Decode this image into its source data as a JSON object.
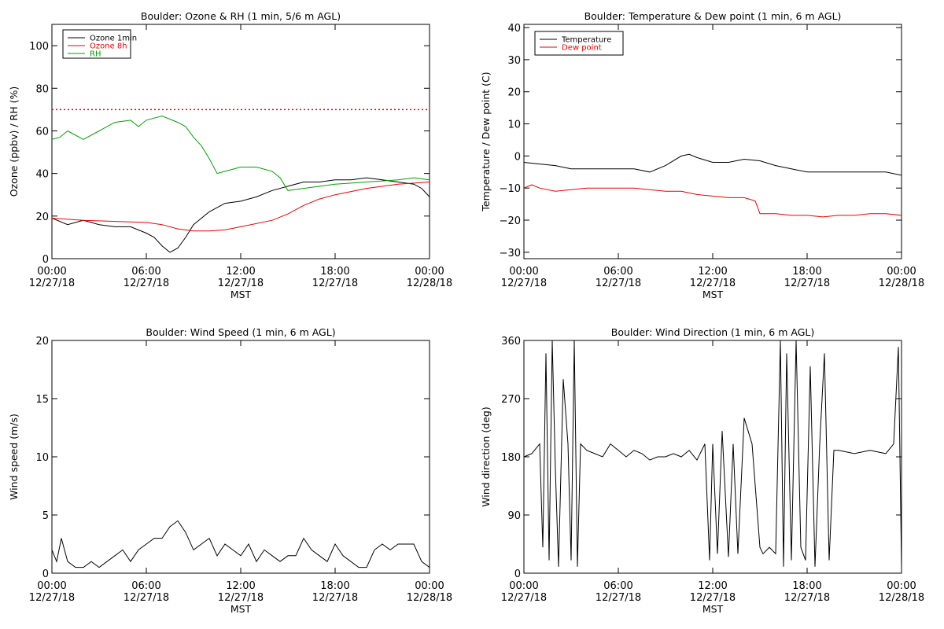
{
  "colors": {
    "black": "#000000",
    "red": "#ee0000",
    "green": "#00a000"
  },
  "chart_data": [
    {
      "type": "line",
      "title": "Boulder: Ozone & RH (1 min, 5/6 m AGL)",
      "xlabel": "MST",
      "ylabel": "Ozone (ppbv) / RH (%)",
      "xlim": [
        0,
        24
      ],
      "ylim": [
        0,
        110
      ],
      "xticks": [
        {
          "top": "00:00",
          "bottom": "12/27/18"
        },
        {
          "top": "06:00",
          "bottom": "12/27/18"
        },
        {
          "top": "12:00",
          "bottom": "12/27/18"
        },
        {
          "top": "18:00",
          "bottom": "12/27/18"
        },
        {
          "top": "00:00",
          "bottom": "12/28/18"
        }
      ],
      "yticks": [
        "0",
        "20",
        "40",
        "60",
        "80",
        "100"
      ],
      "legend_position": "top-left",
      "reference_line": {
        "y": 70,
        "color": "#ee0000",
        "style": "dotted"
      },
      "series": [
        {
          "name": "Ozone 1min",
          "color": "#000000",
          "x": [
            0,
            1,
            2,
            3,
            4,
            5,
            6,
            6.5,
            7,
            7.5,
            8,
            8.5,
            9,
            10,
            11,
            12,
            13,
            14,
            15,
            16,
            17,
            18,
            19,
            20,
            21,
            22,
            23,
            23.5,
            24
          ],
          "y": [
            19,
            16,
            18,
            16,
            15,
            15,
            12,
            10,
            6,
            3,
            5,
            10,
            16,
            22,
            26,
            27,
            29,
            32,
            34,
            36,
            36,
            37,
            37,
            38,
            37,
            36,
            35,
            33,
            29
          ]
        },
        {
          "name": "Ozone 8h",
          "color": "#ee0000",
          "x": [
            0,
            2,
            4,
            6,
            7,
            8,
            9,
            10,
            11,
            12,
            14,
            15,
            16,
            17,
            18,
            20,
            22,
            24
          ],
          "y": [
            19,
            18,
            17.5,
            17,
            16,
            14,
            13,
            13,
            13.5,
            15,
            18,
            21,
            25,
            28,
            30,
            33,
            35,
            36
          ]
        },
        {
          "name": "RH",
          "color": "#00a000",
          "x": [
            0,
            0.5,
            1,
            2,
            3,
            4,
            5,
            5.5,
            6,
            6.5,
            7,
            8,
            8.5,
            9,
            9.5,
            10,
            10.5,
            11,
            12,
            13,
            14,
            14.5,
            15,
            16,
            18,
            20,
            22,
            23,
            24
          ],
          "y": [
            56,
            57,
            60,
            56,
            60,
            64,
            65,
            62,
            65,
            66,
            67,
            64,
            62,
            57,
            53,
            47,
            40,
            41,
            43,
            43,
            41,
            38,
            32,
            33,
            35,
            36,
            37,
            38,
            37
          ]
        }
      ]
    },
    {
      "type": "line",
      "title": "Boulder: Temperature & Dew point (1 min, 6 m AGL)",
      "xlabel": "MST",
      "ylabel": "Temperature / Dew point (C)",
      "xlim": [
        0,
        24
      ],
      "ylim": [
        -32,
        41
      ],
      "xticks": [
        {
          "top": "00:00",
          "bottom": "12/27/18"
        },
        {
          "top": "06:00",
          "bottom": "12/27/18"
        },
        {
          "top": "12:00",
          "bottom": "12/27/18"
        },
        {
          "top": "18:00",
          "bottom": "12/27/18"
        },
        {
          "top": "00:00",
          "bottom": "12/28/18"
        }
      ],
      "yticks": [
        "−30",
        "−20",
        "−10",
        "0",
        "10",
        "20",
        "30",
        "40"
      ],
      "legend_position": "top-left",
      "series": [
        {
          "name": "Temperature",
          "color": "#000000",
          "x": [
            0,
            1,
            2,
            3,
            4,
            5,
            6,
            7,
            8,
            9,
            10,
            10.5,
            11,
            12,
            13,
            14,
            15,
            16,
            17,
            18,
            19,
            20,
            21,
            22,
            23,
            24
          ],
          "y": [
            -2,
            -2.5,
            -3,
            -4,
            -4,
            -4,
            -4,
            -4,
            -5,
            -3,
            0,
            0.5,
            -0.5,
            -2,
            -2,
            -1,
            -1.5,
            -3,
            -4,
            -5,
            -5,
            -5,
            -5,
            -5,
            -5,
            -6
          ]
        },
        {
          "name": "Dew point",
          "color": "#ee0000",
          "x": [
            0,
            0.5,
            1,
            2,
            3,
            4,
            5,
            6,
            7,
            8,
            9,
            10,
            11,
            12,
            13,
            14,
            14.7,
            15,
            16,
            17,
            18,
            19,
            20,
            21,
            22,
            23,
            24
          ],
          "y": [
            -10,
            -9,
            -10,
            -11,
            -10.5,
            -10,
            -10,
            -10,
            -10,
            -10.5,
            -11,
            -11,
            -12,
            -12.5,
            -13,
            -13,
            -14,
            -18,
            -18,
            -18.5,
            -18.5,
            -19,
            -18.5,
            -18.5,
            -18,
            -18,
            -18.5
          ]
        }
      ]
    },
    {
      "type": "line",
      "title": "Boulder: Wind Speed (1 min, 6 m AGL)",
      "xlabel": "MST",
      "ylabel": "Wind speed (m/s)",
      "xlim": [
        0,
        24
      ],
      "ylim": [
        0,
        20
      ],
      "xticks": [
        {
          "top": "00:00",
          "bottom": "12/27/18"
        },
        {
          "top": "06:00",
          "bottom": "12/27/18"
        },
        {
          "top": "12:00",
          "bottom": "12/27/18"
        },
        {
          "top": "18:00",
          "bottom": "12/27/18"
        },
        {
          "top": "00:00",
          "bottom": "12/28/18"
        }
      ],
      "yticks": [
        "0",
        "5",
        "10",
        "15",
        "20"
      ],
      "series": [
        {
          "color": "#000000",
          "x": [
            0,
            0.3,
            0.6,
            1,
            1.5,
            2,
            2.5,
            3,
            3.5,
            4,
            4.5,
            5,
            5.5,
            6,
            6.5,
            7,
            7.5,
            8,
            8.5,
            9,
            9.5,
            10,
            10.5,
            11,
            11.5,
            12,
            12.5,
            13,
            13.5,
            14,
            14.5,
            15,
            15.5,
            16,
            16.5,
            17,
            17.5,
            18,
            18.5,
            19,
            19.5,
            20,
            20.5,
            21,
            21.5,
            22,
            22.5,
            23,
            23.5,
            24
          ],
          "y": [
            2,
            1,
            3,
            1,
            0.5,
            0.5,
            1,
            0.5,
            1,
            1.5,
            2,
            1,
            2,
            2.5,
            3,
            3,
            4,
            4.5,
            3.5,
            2,
            2.5,
            3,
            1.5,
            2.5,
            2,
            1.5,
            2.5,
            1,
            2,
            1.5,
            1,
            1.5,
            1.5,
            3,
            2,
            1.5,
            1,
            2.5,
            1.5,
            1,
            0.5,
            0.5,
            2,
            2.5,
            2,
            2.5,
            2.5,
            2.5,
            1,
            0.5
          ]
        }
      ]
    },
    {
      "type": "line",
      "title": "Boulder: Wind Direction (1 min, 6 m AGL)",
      "xlabel": "MST",
      "ylabel": "Wind direction (deg)",
      "xlim": [
        0,
        24
      ],
      "ylim": [
        0,
        360
      ],
      "xticks": [
        {
          "top": "00:00",
          "bottom": "12/27/18"
        },
        {
          "top": "06:00",
          "bottom": "12/27/18"
        },
        {
          "top": "12:00",
          "bottom": "12/27/18"
        },
        {
          "top": "18:00",
          "bottom": "12/27/18"
        },
        {
          "top": "00:00",
          "bottom": "12/28/18"
        }
      ],
      "yticks": [
        "0",
        "90",
        "180",
        "270",
        "360"
      ],
      "series": [
        {
          "color": "#000000",
          "x": [
            0,
            0.5,
            1,
            1.2,
            1.4,
            1.6,
            1.8,
            2.0,
            2.2,
            2.5,
            2.8,
            3.0,
            3.2,
            3.4,
            3.6,
            4,
            4.5,
            5,
            5.5,
            6,
            6.5,
            7,
            7.5,
            8,
            8.5,
            9,
            9.5,
            10,
            10.5,
            11,
            11.5,
            11.8,
            12.0,
            12.3,
            12.6,
            13,
            13.3,
            13.6,
            14,
            14.5,
            15,
            15.2,
            15.6,
            16,
            16.3,
            16.5,
            16.7,
            17,
            17.3,
            17.6,
            17.9,
            18.2,
            18.5,
            18.8,
            19.1,
            19.4,
            19.7,
            20,
            21,
            22,
            23,
            23.5,
            23.8,
            24
          ],
          "y": [
            180,
            185,
            200,
            40,
            340,
            20,
            360,
            160,
            10,
            300,
            200,
            20,
            360,
            10,
            200,
            190,
            185,
            180,
            200,
            190,
            180,
            190,
            185,
            175,
            180,
            180,
            185,
            180,
            190,
            175,
            200,
            20,
            200,
            30,
            220,
            25,
            200,
            30,
            240,
            200,
            40,
            30,
            40,
            30,
            360,
            10,
            340,
            20,
            360,
            40,
            20,
            320,
            10,
            200,
            340,
            20,
            190,
            190,
            185,
            190,
            185,
            200,
            350,
            10
          ]
        }
      ]
    }
  ]
}
